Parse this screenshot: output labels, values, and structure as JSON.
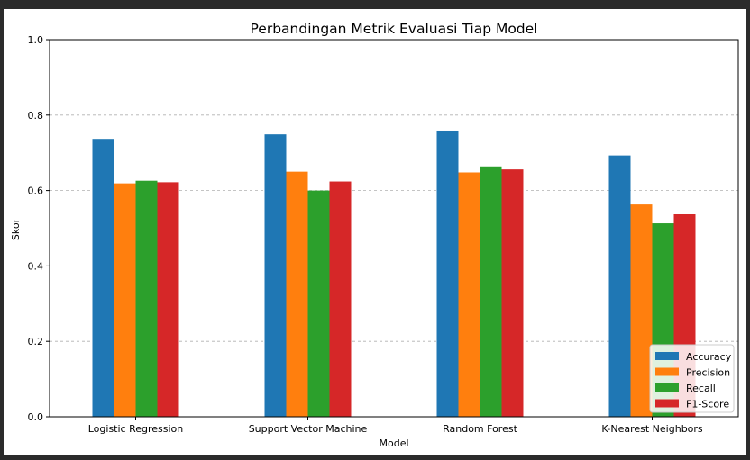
{
  "chart_data": {
    "type": "bar",
    "title": "Perbandingan Metrik Evaluasi Tiap Model",
    "xlabel": "Model",
    "ylabel": "Skor",
    "ylim": [
      0.0,
      1.0
    ],
    "yticks": [
      "0.0",
      "0.2",
      "0.4",
      "0.6",
      "0.8",
      "1.0"
    ],
    "grid": "y-dashed",
    "legend_position": "lower-right",
    "categories": [
      "Logistic Regression",
      "Support Vector Machine",
      "Random Forest",
      "K-Nearest Neighbors"
    ],
    "series": [
      {
        "name": "Accuracy",
        "color": "#1f77b4",
        "values": [
          0.737,
          0.749,
          0.759,
          0.693
        ]
      },
      {
        "name": "Precision",
        "color": "#ff7f0e",
        "values": [
          0.619,
          0.65,
          0.648,
          0.563
        ]
      },
      {
        "name": "Recall",
        "color": "#2ca02c",
        "values": [
          0.626,
          0.6,
          0.664,
          0.513
        ]
      },
      {
        "name": "F1-Score",
        "color": "#d62728",
        "values": [
          0.622,
          0.624,
          0.656,
          0.537
        ]
      }
    ]
  }
}
